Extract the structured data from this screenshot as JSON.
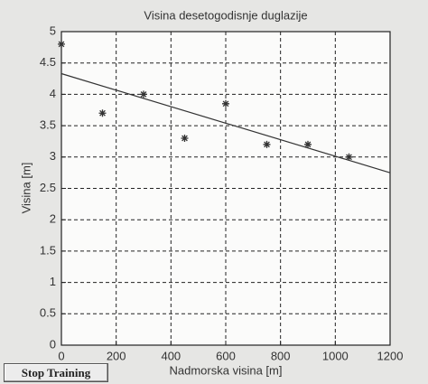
{
  "chart_data": {
    "type": "scatter",
    "title": "Visina desetogodisnje duglazije",
    "xlabel": "Nadmorska visina [m]",
    "ylabel": "Visina [m]",
    "series": [
      {
        "type": "scatter",
        "color": "#333333",
        "x": [
          0,
          150,
          300,
          450,
          600,
          750,
          900,
          1050
        ],
        "values": [
          4.8,
          3.7,
          4.0,
          3.3,
          3.85,
          3.2,
          3.2,
          3.0
        ]
      },
      {
        "type": "line",
        "color": "#333333",
        "x": [
          0,
          1200
        ],
        "values": [
          4.33,
          2.75
        ]
      }
    ],
    "xlim": [
      0,
      1200
    ],
    "xticks": [
      0,
      200,
      400,
      600,
      800,
      1000,
      1200
    ],
    "ylim": [
      0,
      5
    ],
    "yticks": [
      0,
      0.5,
      1,
      1.5,
      2,
      2.5,
      3,
      3.5,
      4,
      4.5,
      5
    ],
    "grid": true
  },
  "button": {
    "label": "Stop Training"
  }
}
